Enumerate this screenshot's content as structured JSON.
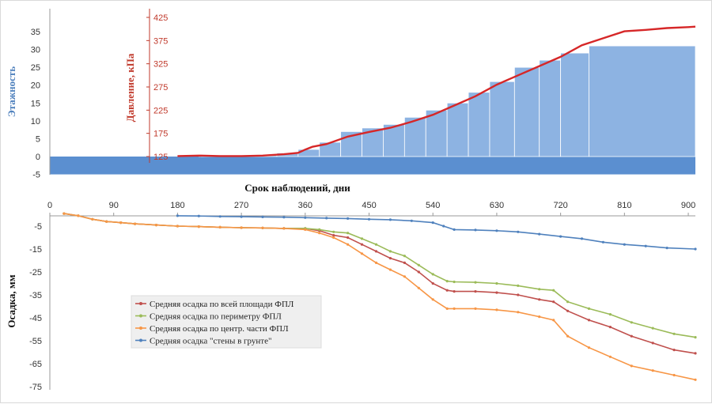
{
  "chart_data": [
    {
      "type": "bar",
      "ylabel": "Этажность",
      "ylim": [
        -5,
        35
      ],
      "yticks": [
        -5,
        0,
        5,
        10,
        15,
        20,
        25,
        30,
        35
      ],
      "xlim": [
        0,
        910
      ],
      "floors": [
        {
          "x0": 0,
          "x1": 210,
          "v": 0
        },
        {
          "x0": 210,
          "x1": 290,
          "v": 0.2
        },
        {
          "x0": 290,
          "x1": 320,
          "v": 0.5
        },
        {
          "x0": 320,
          "x1": 350,
          "v": 1
        },
        {
          "x0": 350,
          "x1": 380,
          "v": 2
        },
        {
          "x0": 380,
          "x1": 410,
          "v": 4
        },
        {
          "x0": 410,
          "x1": 440,
          "v": 7
        },
        {
          "x0": 440,
          "x1": 470,
          "v": 8
        },
        {
          "x0": 470,
          "x1": 500,
          "v": 9
        },
        {
          "x0": 500,
          "x1": 530,
          "v": 11
        },
        {
          "x0": 530,
          "x1": 560,
          "v": 13
        },
        {
          "x0": 560,
          "x1": 590,
          "v": 15
        },
        {
          "x0": 590,
          "x1": 620,
          "v": 18
        },
        {
          "x0": 620,
          "x1": 655,
          "v": 21
        },
        {
          "x0": 655,
          "x1": 690,
          "v": 25
        },
        {
          "x0": 690,
          "x1": 720,
          "v": 27
        },
        {
          "x0": 720,
          "x1": 760,
          "v": 29
        },
        {
          "x0": 760,
          "x1": 910,
          "v": 31
        }
      ],
      "y2label": "Давление, кПа",
      "y2lim": [
        100,
        425
      ],
      "y2ticks": [
        125,
        175,
        225,
        275,
        325,
        375,
        425
      ],
      "pressure": {
        "x": [
          180,
          210,
          240,
          270,
          300,
          330,
          350,
          360,
          370,
          390,
          420,
          450,
          480,
          510,
          540,
          570,
          600,
          630,
          660,
          690,
          720,
          750,
          780,
          810,
          840,
          870,
          900,
          910
        ],
        "y": [
          126,
          127,
          126,
          126,
          127,
          130,
          133,
          140,
          146,
          152,
          168,
          178,
          187,
          200,
          215,
          235,
          255,
          280,
          300,
          320,
          340,
          365,
          380,
          395,
          398,
          402,
          404,
          405
        ]
      }
    },
    {
      "type": "line",
      "xlabel": "Срок наблюдений, дни",
      "ylabel": "Осадка, мм",
      "xlim": [
        0,
        910
      ],
      "xticks": [
        0,
        90,
        180,
        270,
        360,
        450,
        540,
        630,
        720,
        810,
        900
      ],
      "ylim": [
        -75,
        5
      ],
      "yticks": [
        -5,
        -15,
        -25,
        -35,
        -45,
        -55,
        -65,
        -75
      ],
      "series": [
        {
          "name": "Средняя осадка по всей площади ФПЛ",
          "color": "#c0504d",
          "x": [
            20,
            40,
            60,
            80,
            100,
            120,
            150,
            180,
            210,
            240,
            270,
            300,
            330,
            360,
            380,
            400,
            420,
            440,
            460,
            480,
            500,
            520,
            540,
            560,
            570,
            600,
            630,
            660,
            690,
            710,
            730,
            760,
            790,
            820,
            850,
            880,
            910
          ],
          "y": [
            0.5,
            -0.5,
            -2,
            -3,
            -3.5,
            -4,
            -4.5,
            -5,
            -5.2,
            -5.5,
            -5.7,
            -5.8,
            -6,
            -6,
            -7,
            -9,
            -10,
            -13,
            -16,
            -19,
            -21,
            -25,
            -30,
            -33,
            -33.5,
            -33.5,
            -34,
            -35,
            -37,
            -38,
            -42,
            -46,
            -49,
            -53,
            -56,
            -59,
            -60.5
          ]
        },
        {
          "name": "Средняя осадка по периметру ФПЛ",
          "color": "#9bbb59",
          "x": [
            20,
            40,
            60,
            80,
            100,
            120,
            150,
            180,
            210,
            240,
            270,
            300,
            330,
            360,
            380,
            400,
            420,
            440,
            460,
            480,
            500,
            520,
            540,
            560,
            570,
            600,
            630,
            660,
            690,
            710,
            730,
            760,
            790,
            820,
            850,
            880,
            910
          ],
          "y": [
            0.5,
            -0.5,
            -2,
            -3,
            -3.5,
            -4,
            -4.5,
            -5,
            -5.2,
            -5.5,
            -5.7,
            -5.8,
            -6,
            -6,
            -6.5,
            -7.5,
            -8,
            -10.5,
            -13,
            -16,
            -18,
            -22,
            -26,
            -29,
            -29.3,
            -29.5,
            -30,
            -31,
            -32.5,
            -33,
            -38,
            -41,
            -43.5,
            -47,
            -49.5,
            -52,
            -53.5
          ]
        },
        {
          "name": "Средняя осадка по центр. части ФПЛ",
          "color": "#f79646",
          "x": [
            20,
            40,
            60,
            80,
            100,
            120,
            150,
            180,
            210,
            240,
            270,
            300,
            330,
            360,
            380,
            400,
            420,
            440,
            460,
            480,
            500,
            520,
            540,
            560,
            570,
            600,
            630,
            660,
            690,
            710,
            730,
            760,
            790,
            820,
            850,
            880,
            910
          ],
          "y": [
            0.5,
            -0.5,
            -2,
            -3,
            -3.5,
            -4,
            -4.5,
            -5,
            -5.2,
            -5.5,
            -5.7,
            -5.8,
            -6,
            -6.5,
            -8,
            -10,
            -13,
            -17,
            -21,
            -24,
            -27,
            -32,
            -37,
            -41,
            -41,
            -41,
            -41.5,
            -42.5,
            -44.5,
            -46,
            -53,
            -58,
            -62,
            -66,
            -68,
            -70,
            -72
          ]
        },
        {
          "name": "Средняя осадка  \"стены в грунте\"",
          "color": "#4f81bd",
          "x": [
            180,
            210,
            240,
            270,
            300,
            330,
            360,
            390,
            420,
            450,
            480,
            510,
            540,
            555,
            570,
            600,
            630,
            660,
            690,
            720,
            750,
            780,
            810,
            840,
            870,
            910
          ],
          "y": [
            -0.5,
            -0.6,
            -0.8,
            -0.9,
            -1,
            -1.1,
            -1.3,
            -1.5,
            -1.7,
            -2,
            -2.2,
            -2.7,
            -3.5,
            -5,
            -6.5,
            -6.7,
            -7,
            -7.5,
            -8.5,
            -9.5,
            -10.5,
            -12,
            -13,
            -13.7,
            -14.5,
            -15
          ]
        }
      ]
    }
  ]
}
